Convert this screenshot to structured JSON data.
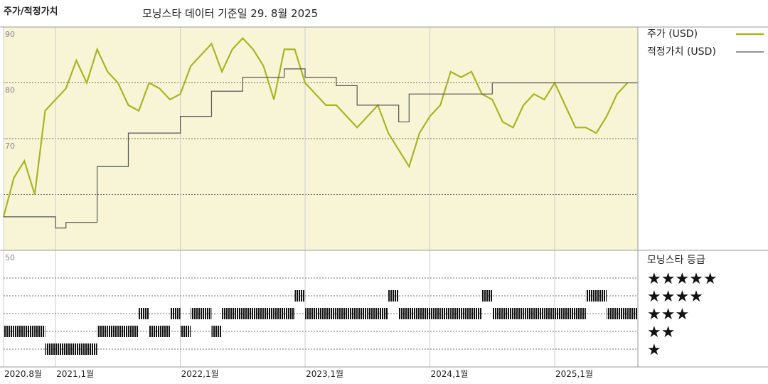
{
  "chart_data": {
    "type": "line",
    "title": "주가/적정가치",
    "subtitle": "모닝스타 데이터 기준일 29. 8월 2025",
    "xlim": [
      "2020-08",
      "2025-09"
    ],
    "xticks": [
      {
        "value": "2020-08",
        "label": "2020.8월"
      },
      {
        "value": "2021-01",
        "label": "2021,1월"
      },
      {
        "value": "2022-01",
        "label": "2022,1월"
      },
      {
        "value": "2023-01",
        "label": "2023,1월"
      },
      {
        "value": "2024-01",
        "label": "2024,1월"
      },
      {
        "value": "2025-01",
        "label": "2025,1월"
      }
    ],
    "ylim": [
      50,
      90
    ],
    "yticks": [
      50,
      70,
      80,
      90
    ],
    "ygrid": [
      60,
      70,
      80
    ],
    "x": [
      "2020-08",
      "2020-09",
      "2020-10",
      "2020-11",
      "2020-12",
      "2021-01",
      "2021-02",
      "2021-03",
      "2021-04",
      "2021-05",
      "2021-06",
      "2021-07",
      "2021-08",
      "2021-09",
      "2021-10",
      "2021-11",
      "2021-12",
      "2022-01",
      "2022-02",
      "2022-03",
      "2022-04",
      "2022-05",
      "2022-06",
      "2022-07",
      "2022-08",
      "2022-09",
      "2022-10",
      "2022-11",
      "2022-12",
      "2023-01",
      "2023-02",
      "2023-03",
      "2023-04",
      "2023-05",
      "2023-06",
      "2023-07",
      "2023-08",
      "2023-09",
      "2023-10",
      "2023-11",
      "2023-12",
      "2024-01",
      "2024-02",
      "2024-03",
      "2024-04",
      "2024-05",
      "2024-06",
      "2024-07",
      "2024-08",
      "2024-09",
      "2024-10",
      "2024-11",
      "2024-12",
      "2025-01",
      "2025-02",
      "2025-03",
      "2025-04",
      "2025-05",
      "2025-06",
      "2025-07",
      "2025-08"
    ],
    "series": [
      {
        "name": "주가 (USD)",
        "color": "#a9b422",
        "step": false,
        "values": [
          56,
          63,
          66,
          60,
          75,
          77,
          79,
          84,
          80,
          86,
          82,
          80,
          76,
          75,
          80,
          79,
          77,
          78,
          83,
          85,
          87,
          82,
          86,
          88,
          86,
          83,
          77,
          86,
          86,
          80,
          78,
          76,
          76,
          74,
          72,
          74,
          76,
          71,
          68,
          65,
          71,
          74,
          76,
          82,
          81,
          82,
          78,
          77,
          73,
          72,
          76,
          78,
          77,
          80,
          76,
          72,
          72,
          71,
          74,
          78,
          80
        ]
      },
      {
        "name": "적정가치 (USD)",
        "color": "#555555",
        "step": true,
        "values": [
          56,
          56,
          56,
          56,
          56,
          54,
          55,
          55,
          55,
          65,
          65,
          65,
          71,
          71,
          71,
          71,
          71,
          74,
          74,
          74,
          78.5,
          78.5,
          78.5,
          81,
          81,
          81,
          81,
          82.5,
          82.5,
          81,
          81,
          81,
          79.5,
          79.5,
          76,
          76,
          76,
          76,
          73,
          78,
          78,
          78,
          78,
          78,
          78,
          78,
          78,
          80,
          80,
          80,
          80,
          80,
          80,
          80,
          80,
          80,
          80,
          80,
          80,
          80,
          80
        ]
      }
    ],
    "ratings": {
      "title": "모닝스타 등급",
      "levels": [
        5,
        4,
        3,
        2,
        1
      ],
      "level_labels": [
        "★★★★★",
        "★★★★",
        "★★★",
        "★★",
        "★"
      ],
      "values": [
        2,
        2,
        2,
        2,
        1,
        1,
        1,
        1,
        1,
        2,
        2,
        2,
        2,
        3,
        2,
        2,
        3,
        2,
        3,
        3,
        2,
        3,
        3,
        3,
        3,
        3,
        3,
        3,
        4,
        3,
        3,
        3,
        3,
        3,
        3,
        3,
        3,
        4,
        3,
        3,
        3,
        3,
        3,
        3,
        3,
        3,
        4,
        3,
        3,
        3,
        3,
        3,
        3,
        3,
        3,
        3,
        4,
        4,
        3,
        3,
        3
      ],
      "color": "#111111"
    },
    "panel_color": "#f8f5d6"
  }
}
